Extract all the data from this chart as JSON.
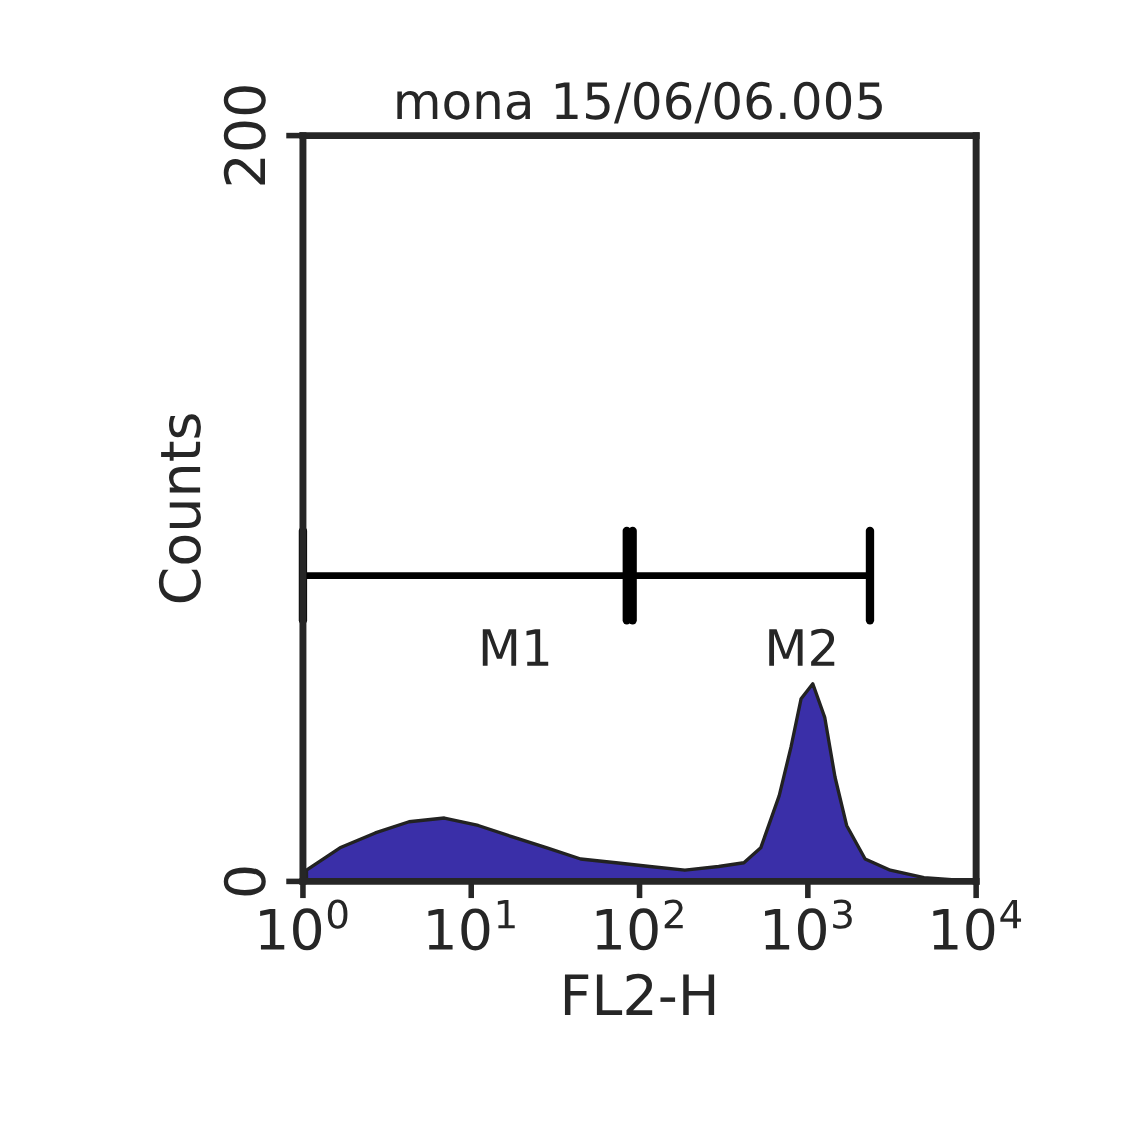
{
  "chart_data": {
    "type": "area",
    "title": "mona 15/06/06.005",
    "xlabel": "FL2-H",
    "ylabel": "Counts",
    "log": "x",
    "xlim": [
      1,
      10000
    ],
    "ylim": [
      0,
      200
    ],
    "xticks": [
      {
        "value": 1,
        "label": "10$^{0}$"
      },
      {
        "value": 10,
        "label": "10$^{1}$"
      },
      {
        "value": 100,
        "label": "10$^{2}$"
      },
      {
        "value": 1000,
        "label": "10$^{3}$"
      },
      {
        "value": 10000,
        "label": "10$^{4}$"
      }
    ],
    "yticks": [
      0,
      200
    ],
    "series": [
      {
        "color": "#3a2fa8",
        "x": [
          1.05,
          1.66,
          2.69,
          4.27,
          6.92,
          11,
          17.4,
          28.2,
          44.7,
          72.4,
          115,
          186,
          295,
          417,
          525,
          676,
          794,
          912,
          1070,
          1260,
          1450,
          1700,
          2190,
          3090,
          4900,
          10000
        ],
        "values": [
          3,
          9,
          13,
          16,
          17,
          15,
          12,
          9,
          6,
          5,
          4,
          3,
          4,
          5,
          9,
          23,
          36,
          49,
          53,
          44,
          28,
          15,
          6,
          3,
          1,
          0
        ]
      },
      {
        "type": "line",
        "name": "M1",
        "color": "#000000",
        "x": [
          1,
          84
        ],
        "values": [
          82,
          82
        ]
      },
      {
        "type": "line",
        "name": "M2",
        "color": "#000000",
        "x": [
          91,
          2340
        ],
        "values": [
          82,
          82
        ]
      }
    ]
  }
}
